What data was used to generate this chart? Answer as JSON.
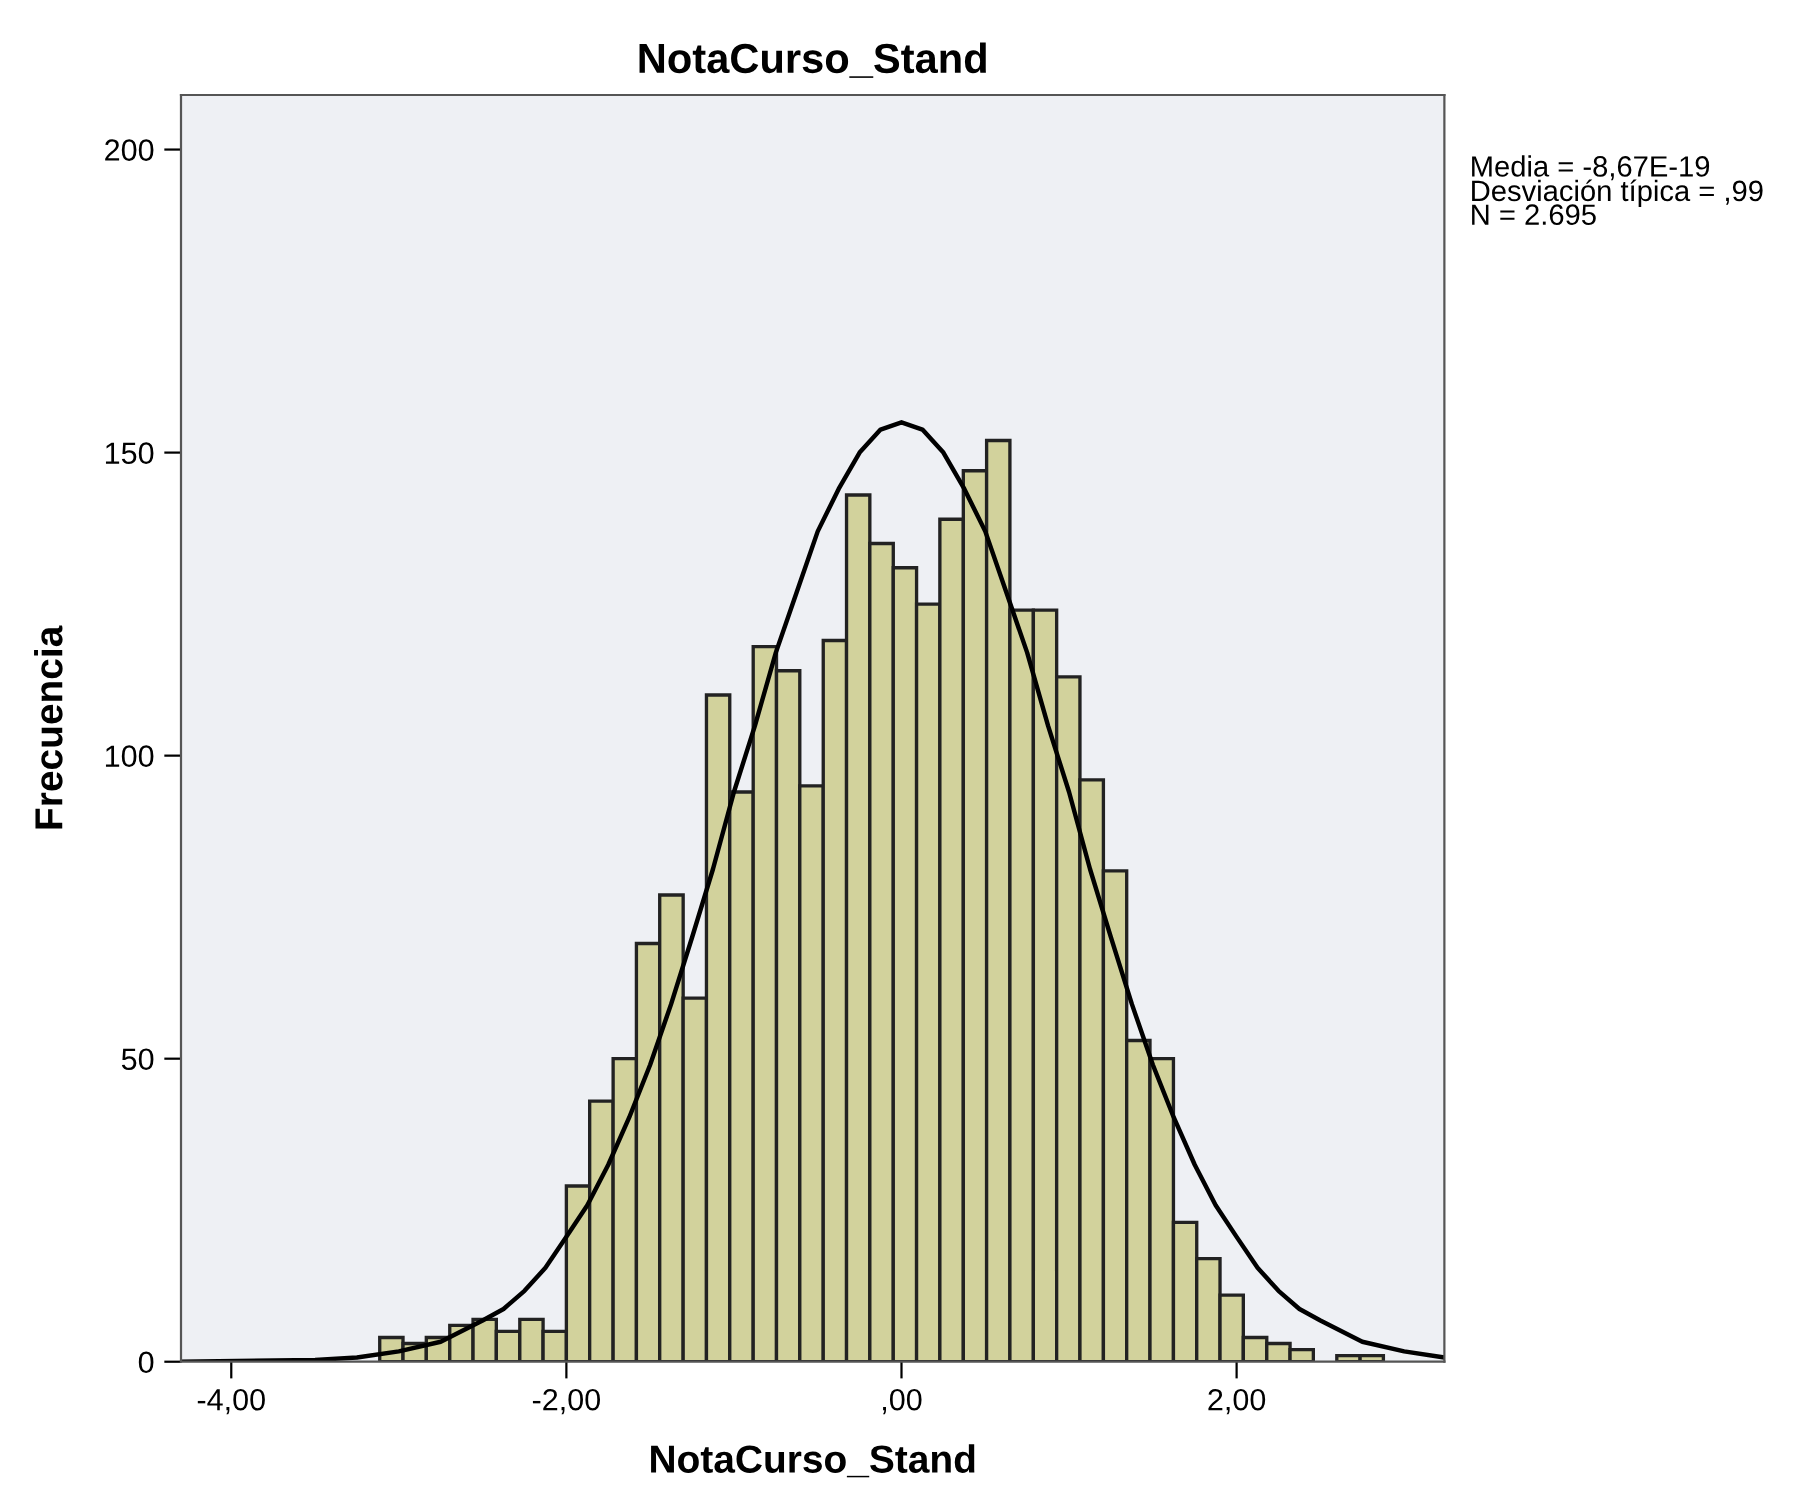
{
  "chart_data": {
    "type": "histogram",
    "title": "NotaCurso_Stand",
    "xlabel": "NotaCurso_Stand",
    "ylabel": "Frecuencia",
    "bins": [
      -3.114,
      -2.975,
      -2.836,
      -2.696,
      -2.557,
      -2.418,
      -2.278,
      -2.139,
      -2.0,
      -1.861,
      -1.721,
      -1.582,
      -1.443,
      -1.303,
      -1.164,
      -1.025,
      -0.885,
      -0.746,
      -0.607,
      -0.467,
      -0.328,
      -0.189,
      -0.049,
      0.09,
      0.229,
      0.369,
      0.508,
      0.647,
      0.787,
      0.926,
      1.065,
      1.205,
      1.344,
      1.483,
      1.623,
      1.762,
      1.901,
      2.04,
      2.18,
      2.319,
      2.458,
      2.598,
      2.737,
      2.876
    ],
    "values": [
      4,
      3,
      4,
      6,
      7,
      5,
      7,
      5,
      29,
      43,
      50,
      69,
      77,
      60,
      110,
      94,
      118,
      114,
      95,
      119,
      143,
      135,
      131,
      125,
      139,
      147,
      152,
      124,
      124,
      113,
      96,
      81,
      53,
      50,
      23,
      17,
      11,
      4,
      3,
      2,
      0,
      1,
      1
    ],
    "color": "#d2d29c",
    "series": [
      {
        "type": "line",
        "color": "#000000",
        "x": [
          -4.3,
          -3.5,
          -3.25,
          -3,
          -2.75,
          -2.5,
          -2.375,
          -2.25,
          -2.125,
          -2,
          -1.875,
          -1.75,
          -1.625,
          -1.5,
          -1.375,
          -1.25,
          -1.125,
          -1,
          -0.875,
          -0.75,
          -0.625,
          -0.5,
          -0.375,
          -0.25,
          -0.125,
          0,
          0.125,
          0.25,
          0.375,
          0.5,
          0.625,
          0.75,
          0.875,
          1,
          1.125,
          1.25,
          1.375,
          1.5,
          1.625,
          1.75,
          1.875,
          2,
          2.125,
          2.25,
          2.375,
          2.5,
          2.75,
          3,
          3.24
        ],
        "values": [
          0,
          0.3,
          0.7,
          1.7,
          3.3,
          6.8,
          8.7,
          11.7,
          15.5,
          20.6,
          25.8,
          32.5,
          40.3,
          49,
          59,
          70,
          81.3,
          94,
          104.9,
          117,
          127,
          137,
          144,
          150,
          153.8,
          155,
          153.8,
          150,
          144,
          137,
          127,
          117,
          104.9,
          94,
          81.3,
          70,
          59,
          49,
          40.3,
          32.5,
          25.8,
          20.6,
          15.5,
          11.7,
          8.7,
          6.8,
          3.3,
          1.7,
          0.7
        ]
      }
    ],
    "xlim": [
      -4.3,
      3.24
    ],
    "ylim": [
      0,
      209
    ],
    "xticks": [
      {
        "value": -4,
        "label": "-4,00"
      },
      {
        "value": -2,
        "label": "-2,00"
      },
      {
        "value": 0,
        "label": ",00"
      },
      {
        "value": 2,
        "label": "2,00"
      }
    ],
    "yticks": [
      0,
      50,
      100,
      150,
      200
    ],
    "annotations": [
      "Media = -8,67E-19",
      "Desviación típica = ,99",
      "N = 2.695"
    ]
  }
}
